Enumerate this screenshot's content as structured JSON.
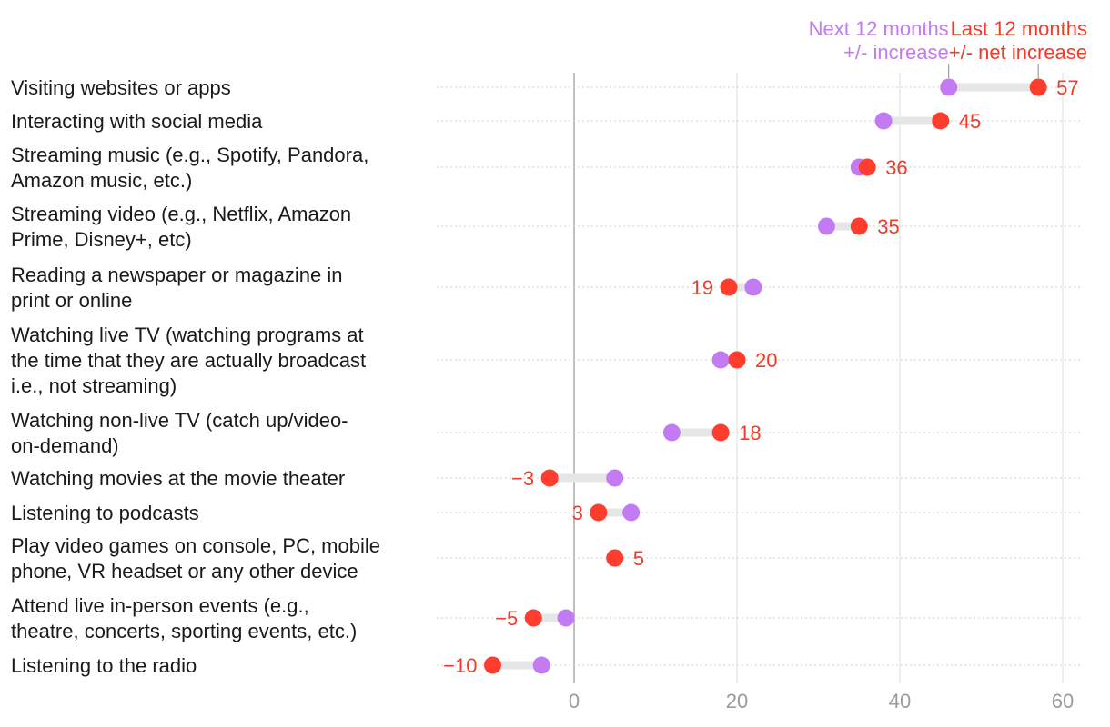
{
  "chart_data": {
    "type": "dumbbell",
    "xlim": [
      -10,
      62
    ],
    "xticks": [
      "0",
      "20",
      "40",
      "60"
    ],
    "xtick_values": [
      0,
      20,
      40,
      60
    ],
    "grid": true,
    "legend_position": "top-right",
    "series": [
      {
        "name": "Next 12 months +/- increase",
        "name_lines": [
          "Next 12 months",
          "+/- increase"
        ],
        "color": "#c27bf2"
      },
      {
        "name": "Last 12 months +/- net increase",
        "name_lines": [
          "Last 12 months",
          "+/- net increase"
        ],
        "color": "#ff3d2e"
      }
    ],
    "connector_color": "#e6e6e6",
    "rows": [
      {
        "label": [
          "Visiting websites or apps"
        ],
        "next": 46,
        "last": 57,
        "last_label": "57"
      },
      {
        "label": [
          "Interacting with social media"
        ],
        "next": 38,
        "last": 45,
        "last_label": "45"
      },
      {
        "label": [
          "Streaming music (e.g., Spotify, Pandora,",
          "Amazon music, etc.)"
        ],
        "next": 35,
        "last": 36,
        "last_label": "36"
      },
      {
        "label": [
          "Streaming video (e.g., Netflix, Amazon",
          "Prime, Disney+, etc)"
        ],
        "next": 31,
        "last": 35,
        "last_label": "35"
      },
      {
        "label": [
          "Reading a newspaper or magazine in",
          "print or online"
        ],
        "next": 22,
        "last": 19,
        "last_label": "19"
      },
      {
        "label": [
          "Watching live TV (watching programs at",
          "the time that they are actually broadcast",
          "i.e., not streaming)"
        ],
        "next": 18,
        "last": 20,
        "last_label": "20"
      },
      {
        "label": [
          "Watching non-live TV (catch up/video-",
          "on-demand)"
        ],
        "next": 12,
        "last": 18,
        "last_label": "18"
      },
      {
        "label": [
          "Watching movies at the movie theater"
        ],
        "next": 5,
        "last": -3,
        "last_label": "−3"
      },
      {
        "label": [
          "Listening to podcasts"
        ],
        "next": 7,
        "last": 3,
        "last_label": "3"
      },
      {
        "label": [
          "Play video games on console, PC, mobile",
          "phone, VR headset or any other device"
        ],
        "next": 5,
        "last": 5,
        "last_label": "5"
      },
      {
        "label": [
          "Attend live in-person events (e.g.,",
          "theatre, concerts, sporting events, etc.)"
        ],
        "next": -1,
        "last": -5,
        "last_label": "−5"
      },
      {
        "label": [
          "Listening to the radio"
        ],
        "next": -4,
        "last": -10,
        "last_label": "−10"
      }
    ]
  }
}
